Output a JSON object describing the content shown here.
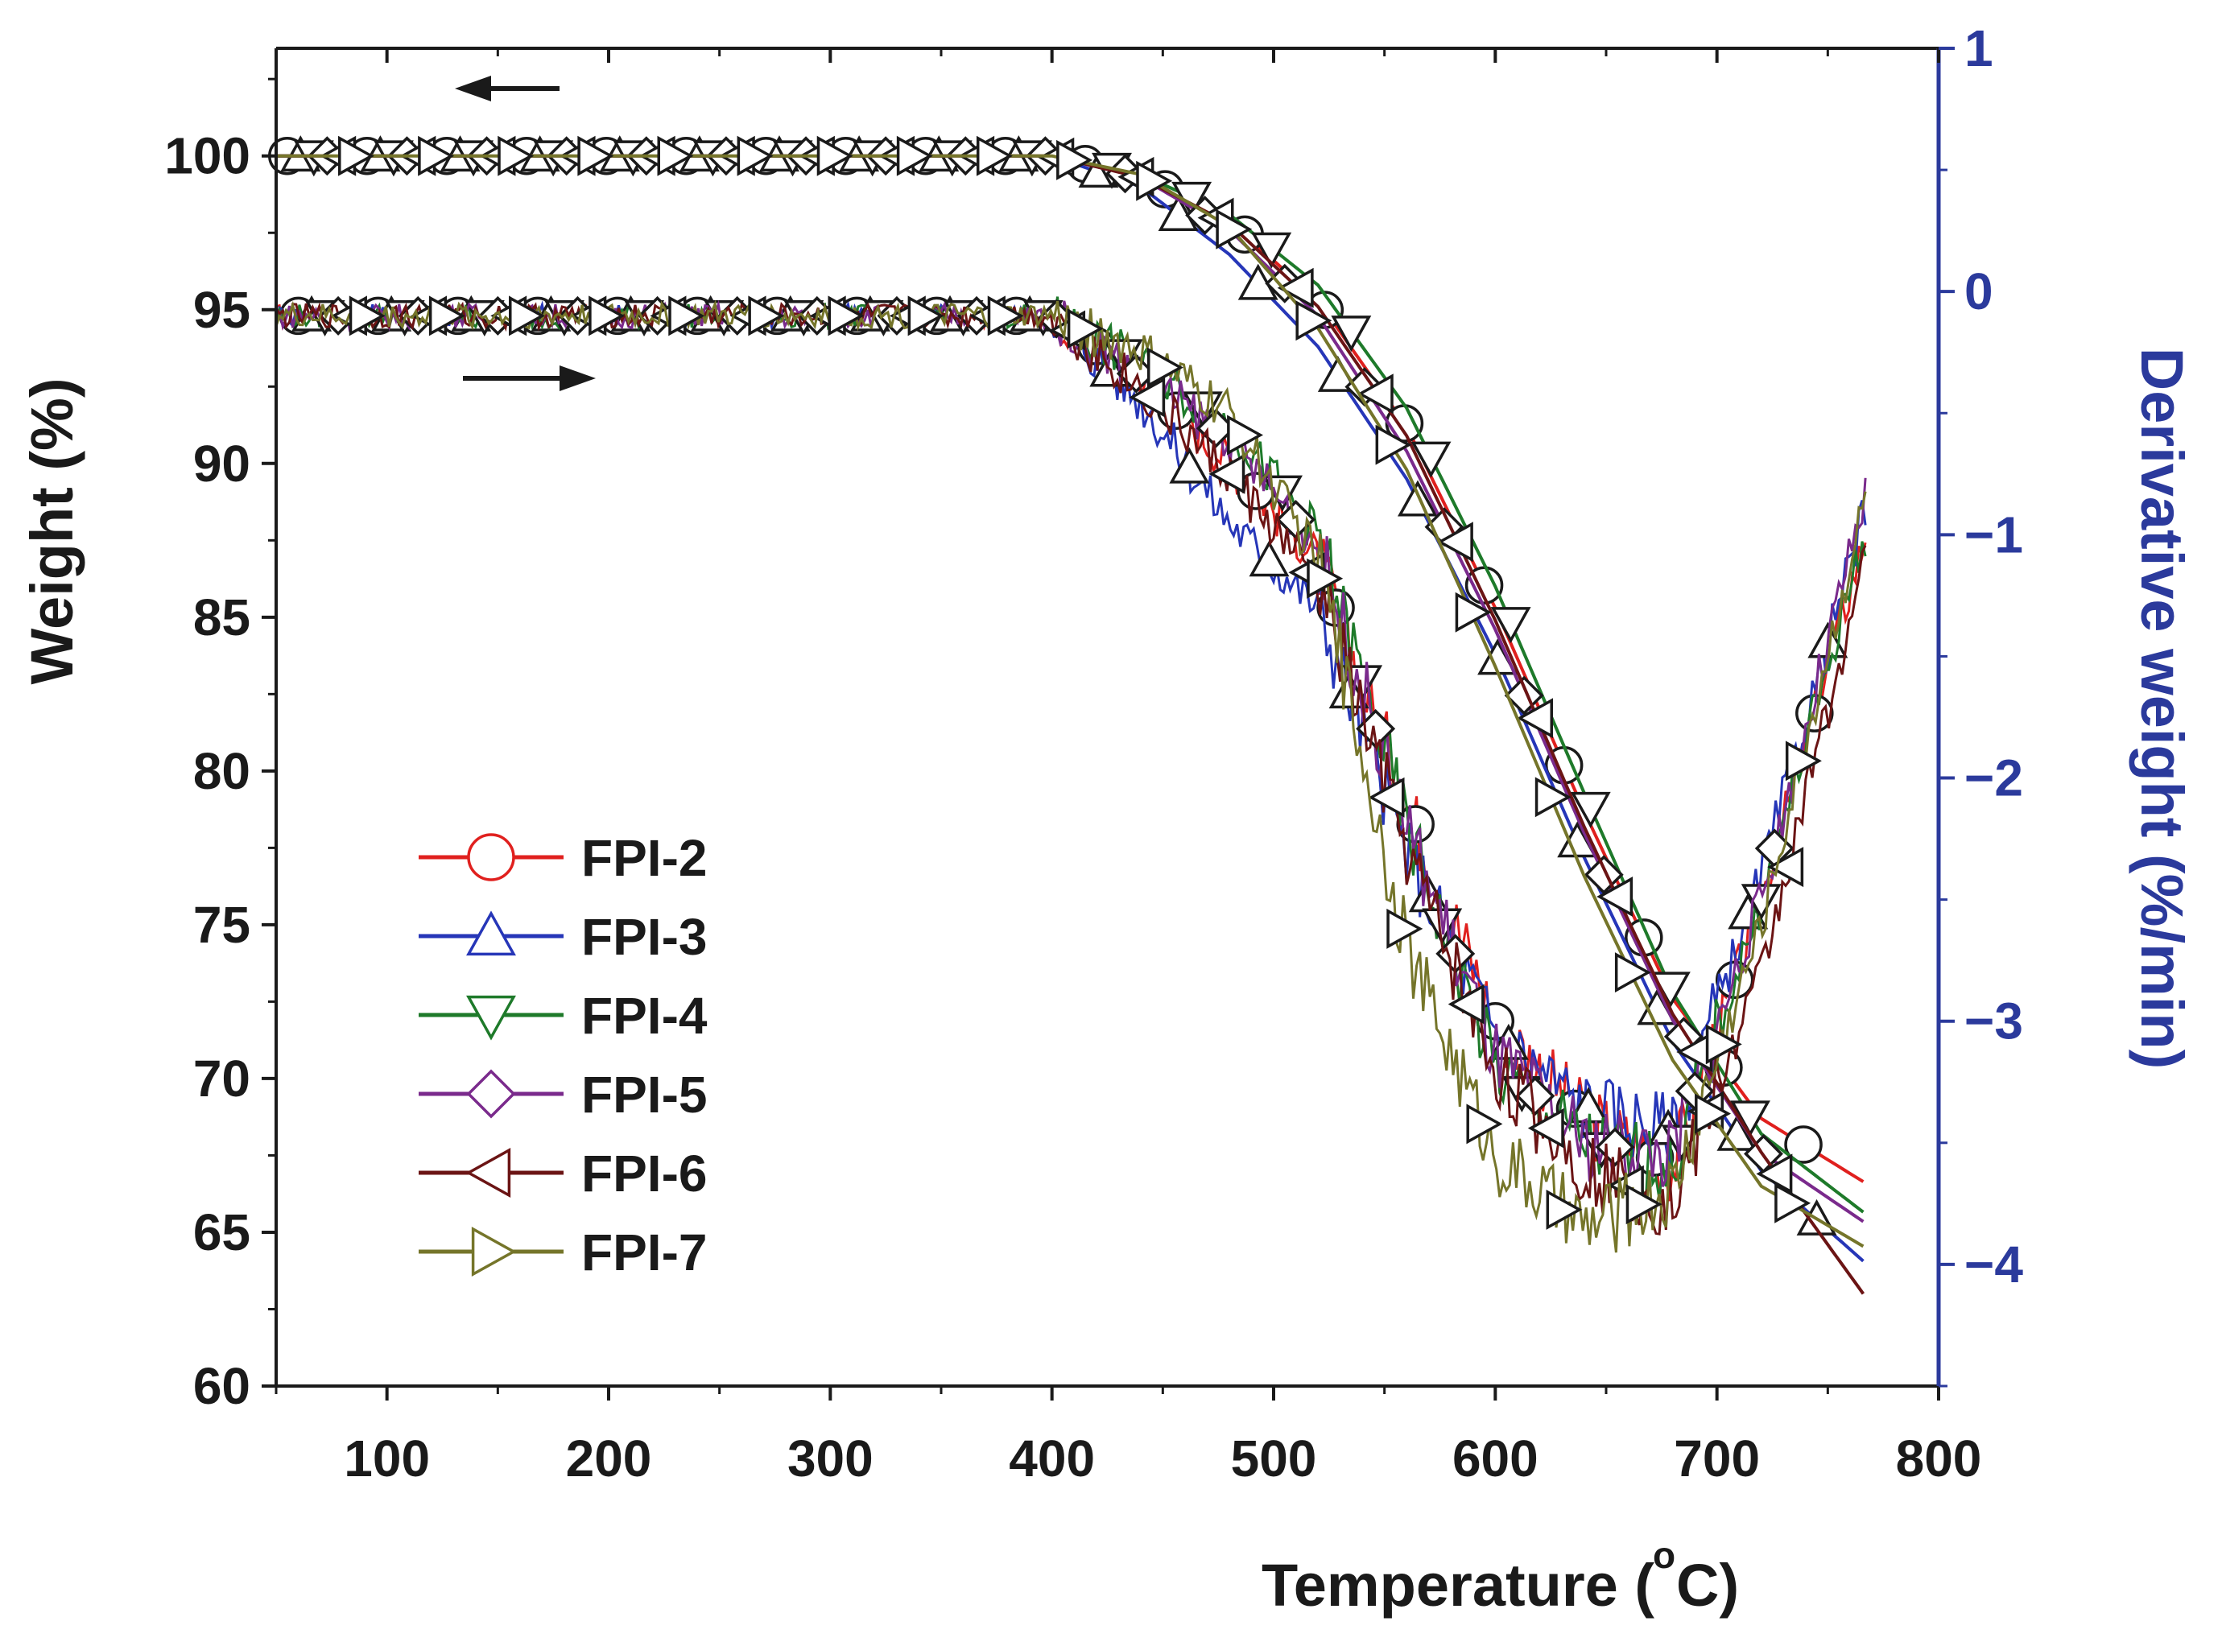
{
  "chart_data": {
    "type": "line",
    "title": "",
    "xlabel": "Temperature (°C)",
    "xlabel_main": "Temperature (",
    "xlabel_degree": "o",
    "xlabel_unit": "C)",
    "ylabel": "Weight (%)",
    "y2label": "Derivative weight (%/min)",
    "xlim": [
      50,
      800
    ],
    "ylim": [
      60,
      103.5
    ],
    "y2lim": [
      -4.5,
      1
    ],
    "x_ticks": [
      "100",
      "200",
      "300",
      "400",
      "500",
      "600",
      "700",
      "800"
    ],
    "y_ticks": [
      "60",
      "65",
      "70",
      "75",
      "80",
      "85",
      "90",
      "95",
      "100"
    ],
    "y2_ticks": [
      "1",
      "0",
      "−1",
      "−2",
      "−3",
      "−4"
    ],
    "annotations": [
      {
        "type": "arrow",
        "direction": "left",
        "points_to_axis": "Weight (%)"
      },
      {
        "type": "arrow",
        "direction": "right",
        "points_to_axis": "Derivative weight (%/min)"
      }
    ],
    "legend": {
      "position": "lower-left"
    },
    "colors": {
      "axis": "#1a1a1a",
      "right_axis": "#2b3a9c"
    },
    "series": [
      {
        "name": "FPI-2",
        "color": "#e0201e",
        "marker": "circle",
        "tga": {
          "x": [
            50,
            400,
            440,
            480,
            520,
            560,
            600,
            640,
            680,
            720,
            767
          ],
          "y": [
            100,
            100,
            99.3,
            97.9,
            95.3,
            91.2,
            85.3,
            78.7,
            72.6,
            68.7,
            66.6
          ]
        },
        "dtg": {
          "x": [
            50,
            400,
            440,
            480,
            520,
            560,
            600,
            640,
            680,
            720,
            767
          ],
          "y": [
            -0.1,
            -0.1,
            -0.35,
            -0.7,
            -1.1,
            -2.1,
            -3.0,
            -3.4,
            -3.6,
            -2.5,
            -1.0
          ]
        }
      },
      {
        "name": "FPI-3",
        "color": "#2636b8",
        "marker": "triangle-up",
        "tga": {
          "x": [
            50,
            400,
            440,
            480,
            520,
            560,
            600,
            640,
            680,
            720,
            767
          ],
          "y": [
            100,
            100,
            99.0,
            96.8,
            93.8,
            89.5,
            83.8,
            77.2,
            71.2,
            67.0,
            64.0
          ]
        },
        "dtg": {
          "x": [
            50,
            400,
            440,
            480,
            520,
            560,
            600,
            640,
            680,
            720,
            767
          ],
          "y": [
            -0.1,
            -0.1,
            -0.45,
            -0.95,
            -1.3,
            -2.3,
            -3.05,
            -3.35,
            -3.45,
            -2.4,
            -0.9
          ]
        }
      },
      {
        "name": "FPI-4",
        "color": "#1e7a2a",
        "marker": "triangle-down",
        "tga": {
          "x": [
            50,
            400,
            440,
            480,
            520,
            560,
            600,
            640,
            680,
            720,
            767
          ],
          "y": [
            100,
            100,
            99.4,
            98.1,
            95.8,
            91.8,
            86.0,
            79.3,
            72.8,
            68.2,
            65.6
          ]
        },
        "dtg": {
          "x": [
            50,
            400,
            440,
            480,
            520,
            560,
            600,
            640,
            680,
            720,
            767
          ],
          "y": [
            -0.1,
            -0.1,
            -0.3,
            -0.55,
            -1.0,
            -2.2,
            -3.2,
            -3.5,
            -3.6,
            -2.5,
            -1.0
          ]
        }
      },
      {
        "name": "FPI-5",
        "color": "#7a2a8c",
        "marker": "diamond",
        "tga": {
          "x": [
            50,
            400,
            440,
            480,
            520,
            560,
            600,
            640,
            680,
            720,
            767
          ],
          "y": [
            100,
            100,
            99.3,
            97.6,
            94.8,
            90.4,
            84.6,
            78.0,
            71.9,
            67.6,
            65.3
          ]
        },
        "dtg": {
          "x": [
            50,
            400,
            440,
            480,
            520,
            560,
            600,
            640,
            680,
            720,
            767
          ],
          "y": [
            -0.1,
            -0.1,
            -0.35,
            -0.6,
            -1.05,
            -2.2,
            -3.15,
            -3.5,
            -3.55,
            -2.5,
            -0.85
          ]
        }
      },
      {
        "name": "FPI-6",
        "color": "#6b1414",
        "marker": "triangle-left",
        "tga": {
          "x": [
            50,
            400,
            440,
            480,
            520,
            560,
            600,
            640,
            680,
            720,
            767
          ],
          "y": [
            100,
            100,
            99.3,
            97.8,
            95.1,
            90.9,
            84.9,
            78.2,
            72.1,
            67.6,
            62.9
          ]
        },
        "dtg": {
          "x": [
            50,
            400,
            440,
            480,
            520,
            560,
            600,
            640,
            680,
            720,
            767
          ],
          "y": [
            -0.1,
            -0.1,
            -0.4,
            -0.75,
            -1.2,
            -2.3,
            -3.2,
            -3.6,
            -3.75,
            -2.8,
            -1.1
          ]
        }
      },
      {
        "name": "FPI-7",
        "color": "#75752a",
        "marker": "triangle-right",
        "tga": {
          "x": [
            50,
            400,
            440,
            480,
            520,
            560,
            600,
            640,
            680,
            720,
            767
          ],
          "y": [
            100,
            100,
            99.4,
            97.7,
            94.4,
            89.8,
            83.4,
            76.6,
            70.6,
            66.5,
            64.5
          ]
        },
        "dtg": {
          "x": [
            50,
            400,
            440,
            480,
            520,
            560,
            600,
            640,
            680,
            720,
            767
          ],
          "y": [
            -0.1,
            -0.1,
            -0.25,
            -0.5,
            -1.1,
            -2.7,
            -3.55,
            -3.85,
            -3.7,
            -2.6,
            -0.85
          ]
        }
      }
    ]
  }
}
